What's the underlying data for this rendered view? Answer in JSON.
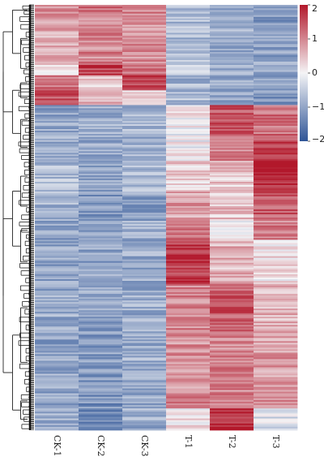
{
  "chart_data": {
    "type": "heatmap",
    "title": "",
    "xlabel": "",
    "ylabel": "",
    "columns": [
      "CK-1",
      "CK-2",
      "CK-3",
      "T-1",
      "T-2",
      "T-3"
    ],
    "row_dendrogram": true,
    "legend_position": "right",
    "color_scale": {
      "min": -2,
      "max": 2,
      "ticks": [
        2,
        1,
        0,
        -1,
        -2
      ],
      "tick_labels": [
        "2",
        "1",
        "0",
        "−1",
        "−2"
      ],
      "low_color": "#2f5597",
      "mid_color": "#f4f4f6",
      "high_color": "#b2182b"
    },
    "row_blocks": [
      {
        "row_fraction": 0.022,
        "values": [
          0.9,
          1.2,
          1.0,
          -0.8,
          -1.0,
          -1.1
        ]
      },
      {
        "row_fraction": 0.098,
        "values": [
          0.7,
          1.0,
          0.9,
          -0.7,
          -0.9,
          -1.1
        ]
      },
      {
        "row_fraction": 0.029,
        "values": [
          0.2,
          1.6,
          1.1,
          -0.6,
          -0.8,
          -1.0
        ]
      },
      {
        "row_fraction": 0.032,
        "values": [
          1.1,
          0.3,
          1.7,
          -0.8,
          -0.9,
          -1.0
        ]
      },
      {
        "row_fraction": 0.031,
        "values": [
          1.4,
          0.6,
          0.1,
          -0.7,
          -0.9,
          -1.2
        ]
      },
      {
        "row_fraction": 0.061,
        "values": [
          -1.0,
          -0.9,
          -0.8,
          0.1,
          1.5,
          1.2
        ]
      },
      {
        "row_fraction": 0.057,
        "values": [
          -0.9,
          -0.9,
          -0.8,
          0.0,
          1.0,
          1.6
        ]
      },
      {
        "row_fraction": 0.065,
        "values": [
          -0.7,
          -0.9,
          -0.8,
          0.3,
          0.4,
          1.8
        ]
      },
      {
        "row_fraction": 0.062,
        "values": [
          -0.8,
          -1.1,
          -1.0,
          0.8,
          0.5,
          1.4
        ]
      },
      {
        "row_fraction": 0.04,
        "values": [
          -1.0,
          -1.1,
          -0.9,
          1.3,
          0.1,
          1.1
        ]
      },
      {
        "row_fraction": 0.094,
        "values": [
          -1.0,
          -1.0,
          -0.9,
          1.7,
          0.6,
          0.2
        ]
      },
      {
        "row_fraction": 0.1,
        "values": [
          -0.9,
          -1.0,
          -0.9,
          1.0,
          1.4,
          0.6
        ]
      },
      {
        "row_fraction": 0.131,
        "values": [
          -1.0,
          -1.1,
          -0.9,
          0.9,
          1.0,
          0.8
        ]
      },
      {
        "row_fraction": 0.032,
        "values": [
          -0.9,
          -1.2,
          -1.0,
          1.1,
          1.0,
          0.9
        ]
      },
      {
        "row_fraction": 0.046,
        "values": [
          -0.9,
          -1.3,
          -0.9,
          0.2,
          1.8,
          -0.2
        ]
      }
    ]
  }
}
